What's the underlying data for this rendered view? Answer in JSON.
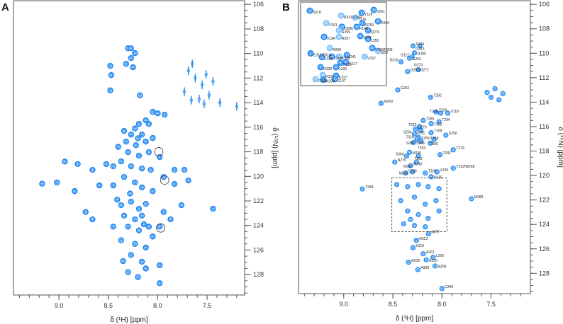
{
  "chart_data": [
    {
      "type": "scatter",
      "subtype": "2D 1H-15N HSQC NMR spectrum",
      "panel_label": "A",
      "xlabel": "δ (¹H) [ppm]",
      "ylabel": "δ (¹⁵N) [ppm]",
      "xlim": [
        9.46,
        7.12
      ],
      "ylim": [
        105.7,
        129.66
      ],
      "x_ticks": [
        9.0,
        8.5,
        8.0,
        7.5
      ],
      "x_tick_labels": [
        "9.0",
        "8.5",
        "8.0",
        "7.5"
      ],
      "y_ticks": [
        106,
        108,
        110,
        112,
        114,
        116,
        118,
        120,
        122,
        124,
        126,
        128
      ],
      "y_tick_labels": [
        "106",
        "108",
        "110",
        "112",
        "114",
        "116",
        "118",
        "120",
        "122",
        "124",
        "126",
        "128"
      ],
      "peaks": [
        [
          8.3,
          109.57
        ],
        [
          8.27,
          109.57
        ],
        [
          8.23,
          109.97
        ],
        [
          8.27,
          110.37
        ],
        [
          8.32,
          110.84
        ],
        [
          8.25,
          111.12
        ],
        [
          8.48,
          111.0
        ],
        [
          8.47,
          111.76
        ],
        [
          8.48,
          113.0
        ],
        [
          8.18,
          113.4
        ],
        [
          8.05,
          114.75
        ],
        [
          8.0,
          114.87
        ],
        [
          7.93,
          114.98
        ],
        [
          8.12,
          115.44
        ],
        [
          8.19,
          115.73
        ],
        [
          8.09,
          115.73
        ],
        [
          8.34,
          116.3
        ],
        [
          8.27,
          116.6
        ],
        [
          8.23,
          116.1
        ],
        [
          8.16,
          116.6
        ],
        [
          8.32,
          117.17
        ],
        [
          8.22,
          117.46
        ],
        [
          8.12,
          117.17
        ],
        [
          8.05,
          116.88
        ],
        [
          8.3,
          118.03
        ],
        [
          8.19,
          118.32
        ],
        [
          8.09,
          118.03
        ],
        [
          7.98,
          118.43
        ],
        [
          8.37,
          118.78
        ],
        [
          8.45,
          119.18
        ],
        [
          8.52,
          119.0
        ],
        [
          8.27,
          119.18
        ],
        [
          8.16,
          119.36
        ],
        [
          8.07,
          119.47
        ],
        [
          7.94,
          120.05
        ],
        [
          7.83,
          119.47
        ],
        [
          7.73,
          119.47
        ],
        [
          7.69,
          120.34
        ],
        [
          7.83,
          120.62
        ],
        [
          8.34,
          120.05
        ],
        [
          8.23,
          120.5
        ],
        [
          8.45,
          120.74
        ],
        [
          8.59,
          120.74
        ],
        [
          8.66,
          119.47
        ],
        [
          8.81,
          119.0
        ],
        [
          8.94,
          118.8
        ],
        [
          8.84,
          121.2
        ],
        [
          8.16,
          120.9
        ],
        [
          8.05,
          121.2
        ],
        [
          8.37,
          122.35
        ],
        [
          8.27,
          122.06
        ],
        [
          8.19,
          122.64
        ],
        [
          8.12,
          122.24
        ],
        [
          8.34,
          123.2
        ],
        [
          8.23,
          123.5
        ],
        [
          8.16,
          123.2
        ],
        [
          8.3,
          124.1
        ],
        [
          8.19,
          124.4
        ],
        [
          8.09,
          124.1
        ],
        [
          8.45,
          124.1
        ],
        [
          7.98,
          124.1
        ],
        [
          8.37,
          125.2
        ],
        [
          8.23,
          125.5
        ],
        [
          8.12,
          125.8
        ],
        [
          8.05,
          124.9
        ],
        [
          8.27,
          126.4
        ],
        [
          8.16,
          126.95
        ],
        [
          7.98,
          127.24
        ],
        [
          8.12,
          127.5
        ],
        [
          8.3,
          127.8
        ],
        [
          7.98,
          128.7
        ],
        [
          7.94,
          122.9
        ],
        [
          7.87,
          123.5
        ],
        [
          7.76,
          122.35
        ],
        [
          9.17,
          120.6
        ],
        [
          9.02,
          120.5
        ],
        [
          8.73,
          122.9
        ],
        [
          8.66,
          123.5
        ],
        [
          7.44,
          122.64
        ],
        [
          8.4,
          117.6
        ],
        [
          8.2,
          116.9
        ],
        [
          8.28,
          121.4
        ],
        [
          8.41,
          121.9
        ],
        [
          8.14,
          123.9
        ],
        [
          8.35,
          126.9
        ],
        [
          8.2,
          128.2
        ]
      ],
      "sidechain_peaks": [
        [
          7.69,
          111.4
        ],
        [
          7.65,
          110.84
        ],
        [
          7.62,
          112.0
        ],
        [
          7.55,
          112.56
        ],
        [
          7.51,
          111.7
        ],
        [
          7.44,
          112.27
        ],
        [
          7.73,
          113.1
        ],
        [
          7.58,
          113.7
        ],
        [
          7.48,
          113.4
        ],
        [
          7.37,
          114.0
        ],
        [
          7.66,
          113.8
        ],
        [
          7.53,
          114.1
        ],
        [
          7.2,
          114.3
        ]
      ],
      "highlighted_peaks": [
        [
          7.99,
          118.0
        ],
        [
          7.93,
          120.3
        ],
        [
          7.97,
          124.2
        ]
      ]
    },
    {
      "type": "scatter",
      "subtype": "2D 1H-15N HSQC NMR spectrum with assignments",
      "panel_label": "B",
      "xlabel": "δ (¹H) [ppm]",
      "ylabel": "δ (¹⁵N) [ppm]",
      "xlim": [
        9.46,
        7.1
      ],
      "ylim": [
        105.7,
        129.66
      ],
      "x_ticks": [
        9.0,
        8.5,
        8.0,
        7.5
      ],
      "x_tick_labels": [
        "9.0",
        "8.5",
        "8.0",
        "7.5"
      ],
      "y_ticks": [
        106,
        108,
        110,
        112,
        114,
        116,
        118,
        120,
        122,
        124,
        126,
        128
      ],
      "y_tick_labels": [
        "106",
        "108",
        "110",
        "112",
        "114",
        "116",
        "118",
        "120",
        "122",
        "124",
        "126",
        "128"
      ],
      "assigned_peaks": [
        {
          "label": "S244",
          "x": 8.295,
          "y": 109.4
        },
        {
          "label": "G243",
          "x": 8.223,
          "y": 109.4
        },
        {
          "label": "G285",
          "x": 8.28,
          "y": 109.97
        },
        {
          "label": "G264",
          "x": 8.33,
          "y": 110.4
        },
        {
          "label": "G117",
          "x": 8.305,
          "y": 110.3
        },
        {
          "label": "D316",
          "x": 8.417,
          "y": 110.7
        },
        {
          "label": "G252/G271",
          "x": 8.35,
          "y": 111.5
        },
        {
          "label": "G273",
          "x": 8.24,
          "y": 111.35
        },
        {
          "label": "G242",
          "x": 8.45,
          "y": 113.0
        },
        {
          "label": "T292",
          "x": 8.115,
          "y": 113.6
        },
        {
          "label": "M269",
          "x": 8.62,
          "y": 114.1
        },
        {
          "label": "T259",
          "x": 8.06,
          "y": 114.8
        },
        {
          "label": "T318",
          "x": 8.014,
          "y": 114.9
        },
        {
          "label": "V118",
          "x": 7.94,
          "y": 114.9
        },
        {
          "label": "S270",
          "x": 8.27,
          "y": 116.2
        },
        {
          "label": "S251",
          "x": 8.215,
          "y": 116.3
        },
        {
          "label": "T266",
          "x": 8.19,
          "y": 115.5
        },
        {
          "label": "T302",
          "x": 8.11,
          "y": 115.75
        },
        {
          "label": "T294",
          "x": 8.03,
          "y": 115.6
        },
        {
          "label": "T322",
          "x": 8.23,
          "y": 116.0
        },
        {
          "label": "S256/T249",
          "x": 8.24,
          "y": 116.9
        },
        {
          "label": "S234",
          "x": 8.28,
          "y": 116.6
        },
        {
          "label": "T299",
          "x": 8.11,
          "y": 116.5
        },
        {
          "label": "S250",
          "x": 7.96,
          "y": 116.7
        },
        {
          "label": "T316",
          "x": 8.255,
          "y": 117.0
        },
        {
          "label": "S248",
          "x": 8.29,
          "y": 117.3
        },
        {
          "label": "T306",
          "x": 8.08,
          "y": 117.05
        },
        {
          "label": "S298",
          "x": 8.215,
          "y": 117.2
        },
        {
          "label": "T303",
          "x": 8.12,
          "y": 117.35
        },
        {
          "label": "T279",
          "x": 7.885,
          "y": 117.9
        },
        {
          "label": "M230",
          "x": 8.33,
          "y": 118.1
        },
        {
          "label": "S304",
          "x": 8.36,
          "y": 118.4
        },
        {
          "label": "T362",
          "x": 8.24,
          "y": 118.4
        },
        {
          "label": "T332",
          "x": 8.02,
          "y": 118.3
        },
        {
          "label": "N275",
          "x": 8.48,
          "y": 118.9
        },
        {
          "label": "M240",
          "x": 8.32,
          "y": 119.2
        },
        {
          "label": "R286",
          "x": 8.26,
          "y": 118.9
        },
        {
          "label": "S249",
          "x": 8.37,
          "y": 119.8
        },
        {
          "label": "M243",
          "x": 8.3,
          "y": 119.7
        },
        {
          "label": "T328",
          "x": 8.17,
          "y": 119.8
        },
        {
          "label": "V236",
          "x": 8.05,
          "y": 119.7
        },
        {
          "label": "D235",
          "x": 8.11,
          "y": 120.1
        },
        {
          "label": "Y232/W298",
          "x": 7.885,
          "y": 119.4
        },
        {
          "label": "T284",
          "x": 8.81,
          "y": 121.1
        },
        {
          "label": "M289",
          "x": 7.7,
          "y": 121.9
        },
        {
          "label": "A297",
          "x": 8.137,
          "y": 124.77
        },
        {
          "label": "R323",
          "x": 8.26,
          "y": 125.3
        },
        {
          "label": "K310",
          "x": 8.295,
          "y": 125.9
        },
        {
          "label": "A261",
          "x": 8.19,
          "y": 126.4
        },
        {
          "label": "L260",
          "x": 8.09,
          "y": 126.7
        },
        {
          "label": "A238",
          "x": 8.34,
          "y": 127.1
        },
        {
          "label": "A230",
          "x": 8.16,
          "y": 126.9
        },
        {
          "label": "A209",
          "x": 8.07,
          "y": 127.4
        },
        {
          "label": "A308",
          "x": 8.245,
          "y": 127.7
        },
        {
          "label": "C340",
          "x": 8.0,
          "y": 129.25
        }
      ],
      "unassigned_peaks": [
        [
          8.46,
          120.74
        ],
        [
          8.35,
          120.91
        ],
        [
          8.24,
          120.74
        ],
        [
          8.14,
          120.91
        ],
        [
          8.03,
          121.08
        ],
        [
          8.42,
          122.06
        ],
        [
          8.28,
          121.77
        ],
        [
          8.17,
          122.35
        ],
        [
          8.06,
          122.06
        ],
        [
          8.35,
          122.9
        ],
        [
          8.24,
          123.2
        ],
        [
          8.14,
          123.5
        ],
        [
          8.03,
          122.9
        ],
        [
          8.39,
          123.96
        ],
        [
          8.28,
          124.08
        ],
        [
          8.17,
          124.2
        ],
        [
          8.32,
          123.6
        ],
        [
          7.54,
          113.2
        ],
        [
          7.5,
          113.6
        ],
        [
          7.46,
          112.9
        ],
        [
          7.42,
          113.8
        ],
        [
          7.38,
          113.3
        ]
      ],
      "boxed_region": {
        "x_ppm": [
          8.51,
          7.95
        ],
        "y_ppm": [
          120.2,
          124.6
        ]
      },
      "inset_peaks": [
        {
          "label": "S318",
          "x": 8.45,
          "y": 120.65
        },
        {
          "label": "R331/E342",
          "x": 8.246,
          "y": 120.91
        },
        {
          "label": "Y116",
          "x": 8.112,
          "y": 120.76
        },
        {
          "label": "V241",
          "x": 8.033,
          "y": 120.61
        },
        {
          "label": "T276",
          "x": 8.153,
          "y": 121.02
        },
        {
          "label": "R340",
          "x": 8.005,
          "y": 121.21
        },
        {
          "label": "K144",
          "x": 8.144,
          "y": 121.5
        },
        {
          "label": "V301",
          "x": 8.343,
          "y": 121.31
        },
        {
          "label": "D286",
          "x": 8.241,
          "y": 121.5
        },
        {
          "label": "Q253",
          "x": 8.107,
          "y": 121.31
        },
        {
          "label": "R299",
          "x": 8.26,
          "y": 121.69
        },
        {
          "label": "Q276",
          "x": 8.07,
          "y": 121.69
        },
        {
          "label": "313R",
          "x": 8.357,
          "y": 122.03
        },
        {
          "label": "R297",
          "x": 8.26,
          "y": 122.03
        },
        {
          "label": "V247",
          "x": 8.121,
          "y": 121.99
        },
        {
          "label": "L255",
          "x": 8.07,
          "y": 122.14
        },
        {
          "label": "R260",
          "x": 8.32,
          "y": 122.62
        },
        {
          "label": "E312/E314",
          "x": 8.445,
          "y": 122.9
        },
        {
          "label": "V269/F305",
          "x": 8.042,
          "y": 122.62
        },
        {
          "label": "I329",
          "x": 8.005,
          "y": 122.77
        },
        {
          "label": "D295",
          "x": 8.306,
          "y": 123.07
        },
        {
          "label": "L265",
          "x": 8.371,
          "y": 123.1
        },
        {
          "label": "K328",
          "x": 8.26,
          "y": 123.07
        },
        {
          "label": "D41",
          "x": 8.209,
          "y": 122.99
        },
        {
          "label": "V317",
          "x": 8.214,
          "y": 123.37
        },
        {
          "label": "V337",
          "x": 8.093,
          "y": 123.07
        },
        {
          "label": "R328",
          "x": 8.38,
          "y": 123.63
        },
        {
          "label": "L333",
          "x": 8.279,
          "y": 123.63
        },
        {
          "label": "R311",
          "x": 8.366,
          "y": 124.04
        },
        {
          "label": "K115",
          "x": 8.25,
          "y": 123.4
        },
        {
          "label": "K327",
          "x": 8.279,
          "y": 124.08
        },
        {
          "label": "R253",
          "x": 8.413,
          "y": 124.26
        },
        {
          "label": "K304",
          "x": 8.362,
          "y": 124.29
        },
        {
          "label": "E147",
          "x": 8.288,
          "y": 124.26
        }
      ]
    }
  ],
  "colors": {
    "peak": "#1a84f0",
    "peak_light": "#7dc1ff",
    "axis": "#555555"
  }
}
